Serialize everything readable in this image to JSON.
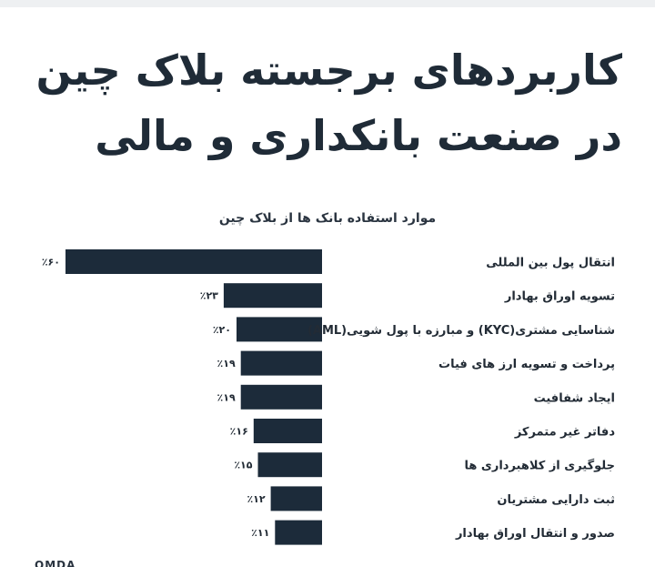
{
  "title_line1": "کاربردهای برجسته بلاک چین",
  "title_line2": "در صنعت بانکداری و مالی",
  "chart_data": {
    "type": "bar",
    "orientation": "horizontal",
    "title": "موارد استفاده بانک ها از بلاک چین",
    "categories": [
      "انتقال پول بین المللی",
      "تسویه اوراق بهادار",
      "شناسایی مشتری(KYC) و مبارزه با پول شویی(AML)",
      "پرداخت و تسویه ارز های فیات",
      "ایجاد شفافیت",
      "دفاتر غیر متمرکز",
      "جلوگیری از کلاهبرداری ها",
      "ثبت دارایی مشتریان",
      "صدور و انتقال اوراق بهادار"
    ],
    "values": [
      60,
      23,
      20,
      19,
      19,
      16,
      15,
      12,
      11
    ],
    "value_labels": [
      "٪۶۰",
      "٪۲۳",
      "٪۲۰",
      "٪۱۹",
      "٪۱۹",
      "٪۱۶",
      "٪۱۵",
      "٪۱۲",
      "٪۱۱"
    ],
    "xlim": [
      0,
      60
    ],
    "bar_color": "#1c2b3a",
    "grid": false,
    "legend": "none"
  },
  "footer_text": "OMDA"
}
